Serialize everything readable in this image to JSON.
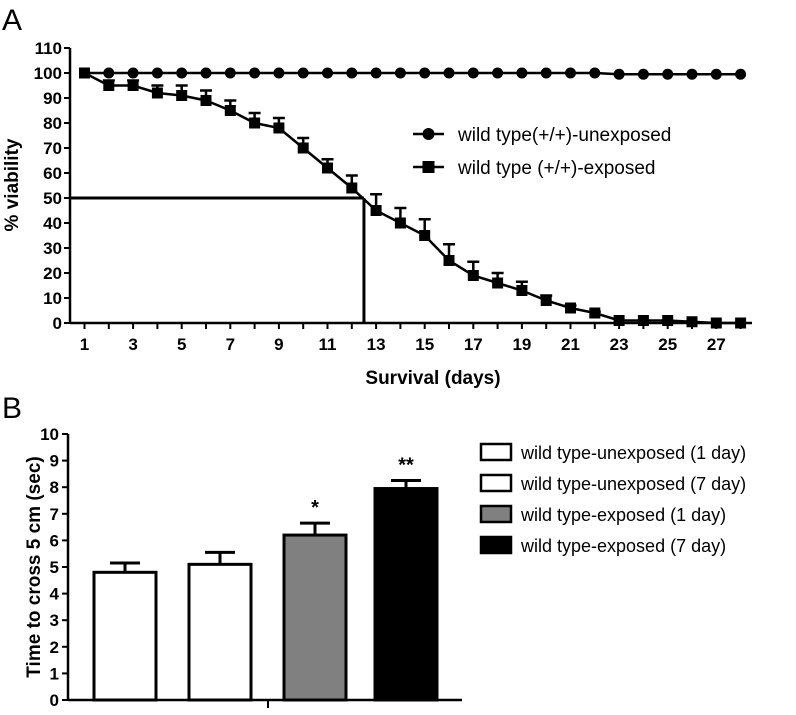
{
  "chart_data": [
    {
      "panel_label": "A",
      "type": "line",
      "xlabel": "Survival (days)",
      "ylabel": "% viability",
      "xlim": [
        0.5,
        28.5
      ],
      "ylim": [
        0,
        110
      ],
      "x_ticks": [
        1,
        3,
        5,
        7,
        9,
        11,
        13,
        15,
        17,
        19,
        21,
        23,
        25,
        27
      ],
      "y_ticks": [
        0,
        10,
        20,
        30,
        40,
        50,
        60,
        70,
        80,
        90,
        100,
        110
      ],
      "legend_position": "center-right",
      "reference_lines": {
        "y": 50,
        "x": 12.5
      },
      "series": [
        {
          "name": "wild type(+/+)-unexposed",
          "marker": "circle",
          "x": [
            1,
            2,
            3,
            4,
            5,
            6,
            7,
            8,
            9,
            10,
            11,
            12,
            13,
            14,
            15,
            16,
            17,
            18,
            19,
            20,
            21,
            22,
            23,
            24,
            25,
            26,
            27,
            28
          ],
          "y": [
            100,
            100,
            100,
            100,
            100,
            100,
            100,
            100,
            100,
            100,
            100,
            100,
            100,
            100,
            100,
            100,
            100,
            100,
            100,
            100,
            100,
            100,
            99.5,
            99.5,
            99.5,
            99.5,
            99.5,
            99.5
          ]
        },
        {
          "name": "wild type (+/+)-exposed",
          "marker": "square",
          "x": [
            1,
            2,
            3,
            4,
            5,
            6,
            7,
            8,
            9,
            10,
            11,
            12,
            13,
            14,
            15,
            16,
            17,
            18,
            19,
            20,
            21,
            22,
            23,
            24,
            25,
            26,
            27,
            28
          ],
          "y": [
            100,
            95,
            95,
            92,
            91,
            89,
            85,
            80,
            78,
            70,
            62,
            54,
            45,
            40,
            35,
            25,
            19,
            16,
            13,
            9,
            6,
            4,
            1,
            1,
            1,
            0.5,
            0,
            0
          ],
          "error": [
            0,
            2,
            2,
            3,
            4,
            4,
            4,
            4,
            4,
            4,
            3.5,
            5,
            6.5,
            6,
            6.5,
            6.5,
            5.5,
            4,
            3.5,
            2,
            1,
            0.5,
            0,
            0,
            0,
            0,
            0,
            0
          ]
        }
      ]
    },
    {
      "panel_label": "B",
      "type": "bar",
      "xlabel": "",
      "ylabel": "Time to cross 5 cm (sec)",
      "ylim": [
        0,
        10
      ],
      "y_ticks": [
        0,
        1,
        2,
        3,
        4,
        5,
        6,
        7,
        8,
        9,
        10
      ],
      "legend_position": "right",
      "bars": [
        {
          "name": "wild type-unexposed (1 day)",
          "value": 4.8,
          "error": 0.35,
          "color": "#ffffff",
          "annotation": ""
        },
        {
          "name": "wild type-unexposed (7 day)",
          "value": 5.1,
          "error": 0.45,
          "color": "#ffffff",
          "annotation": ""
        },
        {
          "name": "wild type-exposed (1 day)",
          "value": 6.2,
          "error": 0.45,
          "color": "#808080",
          "annotation": "*"
        },
        {
          "name": "wild type-exposed (7 day)",
          "value": 7.95,
          "error": 0.3,
          "color": "#000000",
          "annotation": "**"
        }
      ]
    }
  ]
}
